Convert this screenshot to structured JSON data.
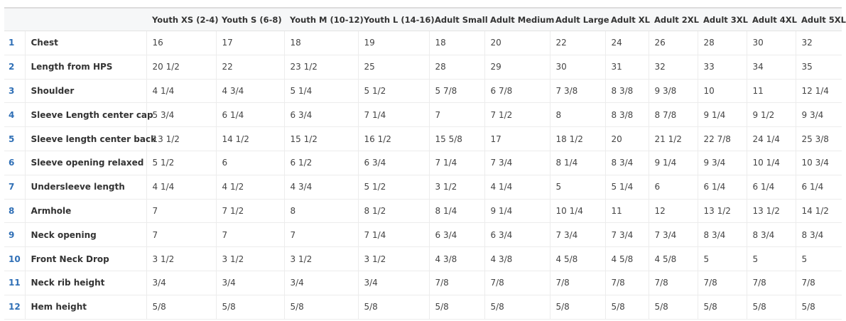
{
  "columns": [
    "Youth XS (2-4)",
    "Youth S (6-8)",
    "Youth M (10-12)",
    "Youth L (14-16)",
    "Adult Small",
    "Adult Medium",
    "Adult Large",
    "Adult XL",
    "Adult 2XL",
    "Adult 3XL",
    "Adult 4XL",
    "Adult 5XL"
  ],
  "rows": [
    {
      "num": "1",
      "label": "Chest",
      "values": [
        "16",
        "17",
        "18",
        "19",
        "18",
        "20",
        "22",
        "24",
        "26",
        "28",
        "30",
        "32"
      ]
    },
    {
      "num": "2",
      "label": "Length from HPS",
      "values": [
        "20 1/2",
        "22",
        "23 1/2",
        "25",
        "28",
        "29",
        "30",
        "31",
        "32",
        "33",
        "34",
        "35"
      ]
    },
    {
      "num": "3",
      "label": "Shoulder",
      "values": [
        "4 1/4",
        "4 3/4",
        "5 1/4",
        "5 1/2",
        "5 7/8",
        "6 7/8",
        "7 3/8",
        "8 3/8",
        "9 3/8",
        "10",
        "11",
        "12 1/4"
      ]
    },
    {
      "num": "4",
      "label": "Sleeve Length center cap",
      "values": [
        "5 3/4",
        "6 1/4",
        "6 3/4",
        "7 1/4",
        "7",
        "7 1/2",
        "8",
        "8 3/8",
        "8 7/8",
        "9 1/4",
        "9 1/2",
        "9 3/4"
      ]
    },
    {
      "num": "5",
      "label": "Sleeve length center back",
      "values": [
        "13 1/2",
        "14 1/2",
        "15 1/2",
        "16 1/2",
        "15 5/8",
        "17",
        "18 1/2",
        "20",
        "21 1/2",
        "22 7/8",
        "24 1/4",
        "25 3/8"
      ]
    },
    {
      "num": "6",
      "label": "Sleeve opening relaxed",
      "values": [
        "5 1/2",
        "6",
        "6 1/2",
        "6 3/4",
        "7 1/4",
        "7 3/4",
        "8 1/4",
        "8 3/4",
        "9 1/4",
        "9 3/4",
        "10 1/4",
        "10 3/4"
      ]
    },
    {
      "num": "7",
      "label": "Undersleeve length",
      "values": [
        "4 1/4",
        "4 1/2",
        "4 3/4",
        "5 1/2",
        "3 1/2",
        "4 1/4",
        "5",
        "5 1/4",
        "6",
        "6 1/4",
        "6 1/4",
        "6 1/4"
      ]
    },
    {
      "num": "8",
      "label": "Armhole",
      "values": [
        "7",
        "7 1/2",
        "8",
        "8 1/2",
        "8 1/4",
        "9 1/4",
        "10 1/4",
        "11",
        "12",
        "13 1/2",
        "13 1/2",
        "14 1/2"
      ]
    },
    {
      "num": "9",
      "label": "Neck opening",
      "values": [
        "7",
        "7",
        "7",
        "7 1/4",
        "6 3/4",
        "6 3/4",
        "7 3/4",
        "7 3/4",
        "7 3/4",
        "8 3/4",
        "8 3/4",
        "8 3/4"
      ]
    },
    {
      "num": "10",
      "label": "Front Neck Drop",
      "values": [
        "3 1/2",
        "3 1/2",
        "3 1/2",
        "3 1/2",
        "4 3/8",
        "4 3/8",
        "4 5/8",
        "4 5/8",
        "4 5/8",
        "5",
        "5",
        "5"
      ]
    },
    {
      "num": "11",
      "label": "Neck rib height",
      "values": [
        "3/4",
        "3/4",
        "3/4",
        "3/4",
        "7/8",
        "7/8",
        "7/8",
        "7/8",
        "7/8",
        "7/8",
        "7/8",
        "7/8"
      ]
    },
    {
      "num": "12",
      "label": "Hem height",
      "values": [
        "5/8",
        "5/8",
        "5/8",
        "5/8",
        "5/8",
        "5/8",
        "5/8",
        "5/8",
        "5/8",
        "5/8",
        "5/8",
        "5/8"
      ]
    }
  ]
}
